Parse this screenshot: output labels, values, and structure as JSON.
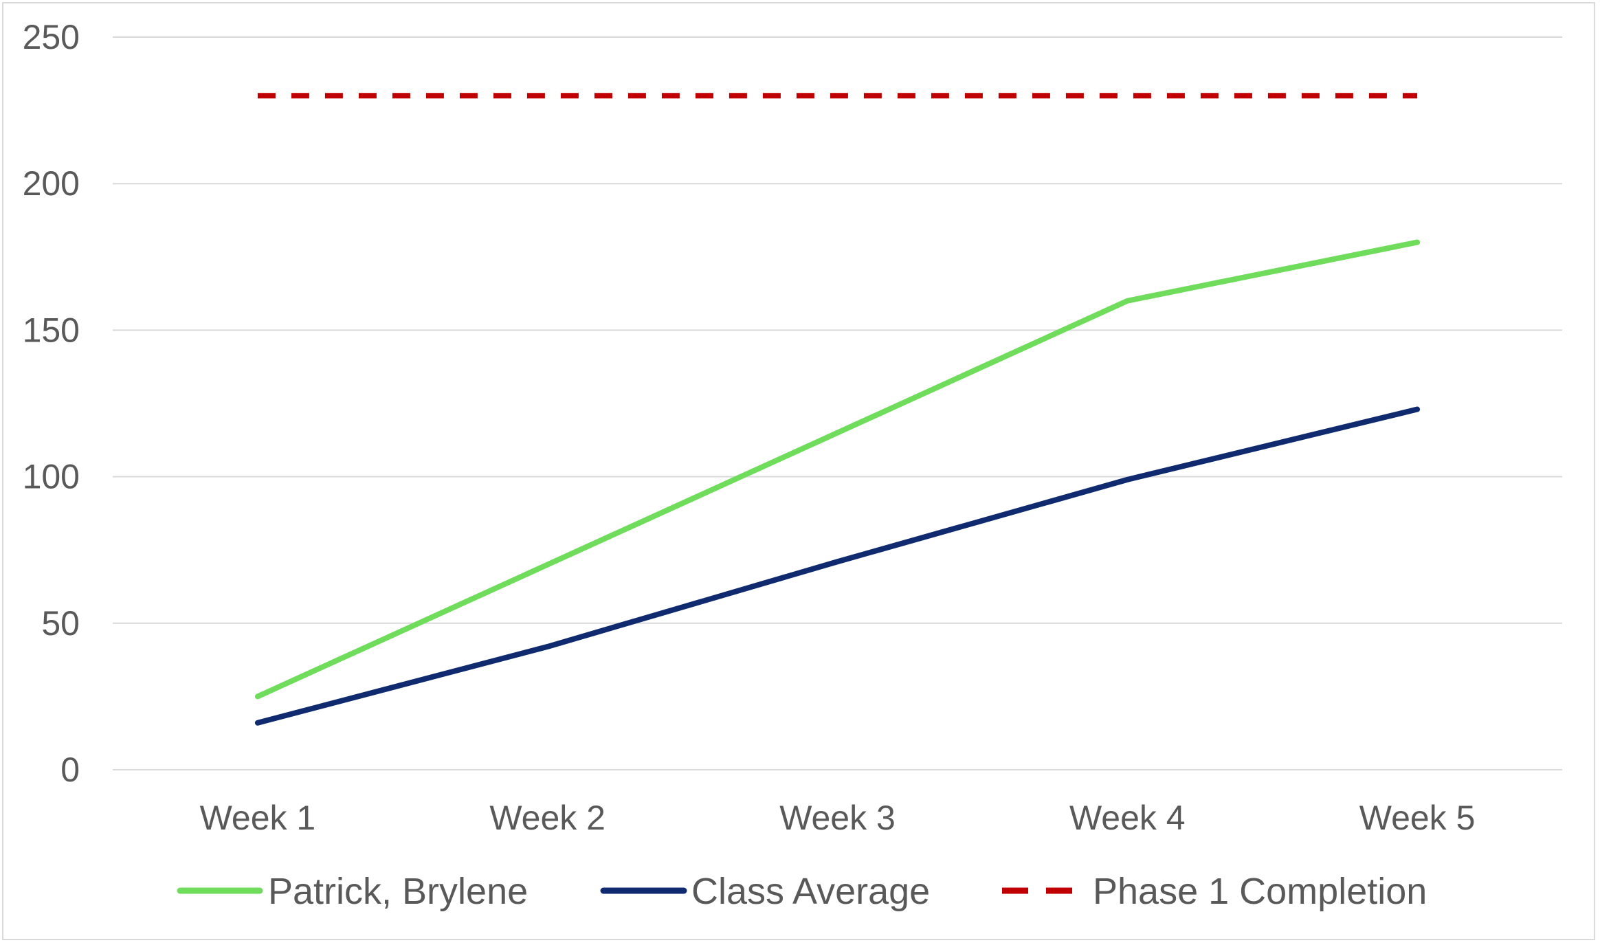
{
  "chart_data": {
    "type": "line",
    "title": "",
    "xlabel": "",
    "ylabel": "",
    "categories": [
      "Week 1",
      "Week 2",
      "Week 3",
      "Week 4",
      "Week 5"
    ],
    "ylim": [
      0,
      250
    ],
    "yticks": [
      0,
      50,
      100,
      150,
      200,
      250
    ],
    "grid": true,
    "legend_position": "bottom",
    "series": [
      {
        "name": "Patrick, Brylene",
        "values": [
          25,
          70,
          115,
          160,
          180
        ],
        "color": "#6fdc5c",
        "style": "solid"
      },
      {
        "name": "Class Average",
        "values": [
          16,
          42,
          71,
          99,
          123
        ],
        "color": "#0f2a6e",
        "style": "solid"
      },
      {
        "name": "Phase 1 Completion",
        "values": [
          230,
          230,
          230,
          230,
          230
        ],
        "color": "#c00000",
        "style": "dashed"
      }
    ]
  }
}
